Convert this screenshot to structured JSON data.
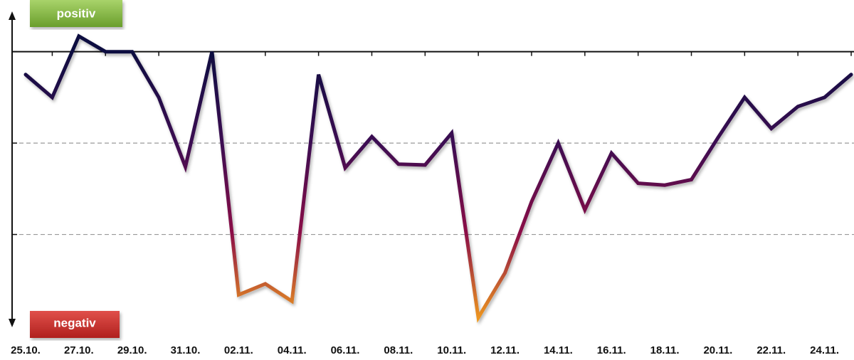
{
  "chart_data": {
    "type": "line",
    "labels": {
      "top": "positiv",
      "bottom": "negativ"
    },
    "categories": [
      "25.10.",
      null,
      "27.10.",
      null,
      "29.10.",
      null,
      "31.10.",
      null,
      "02.11.",
      null,
      "04.11.",
      null,
      "06.11.",
      null,
      "08.11.",
      null,
      "10.11.",
      null,
      "12.11.",
      null,
      "14.11.",
      null,
      "16.11.",
      null,
      "18.11.",
      null,
      "20.11.",
      null,
      "22.11.",
      null,
      "24.11.",
      null
    ],
    "values": [
      -0.25,
      -0.5,
      0.17,
      0,
      0,
      -0.5,
      -1.26,
      0,
      -2.66,
      -2.54,
      -2.73,
      -0.25,
      -1.27,
      -0.93,
      -1.23,
      -1.24,
      -0.89,
      -2.91,
      -2.42,
      -1.64,
      -1.0,
      -1.73,
      -1.11,
      -1.44,
      -1.46,
      -1.4,
      -0.94,
      -0.5,
      -0.84,
      -0.6,
      -0.5,
      -0.25
    ],
    "gradient": [
      "#0e1040",
      "#3c0d52",
      "#8c1046",
      "#f5a11c"
    ],
    "ylim": [
      -3,
      0.41
    ],
    "yticks": [
      0,
      -1,
      -2
    ],
    "grid": true
  }
}
